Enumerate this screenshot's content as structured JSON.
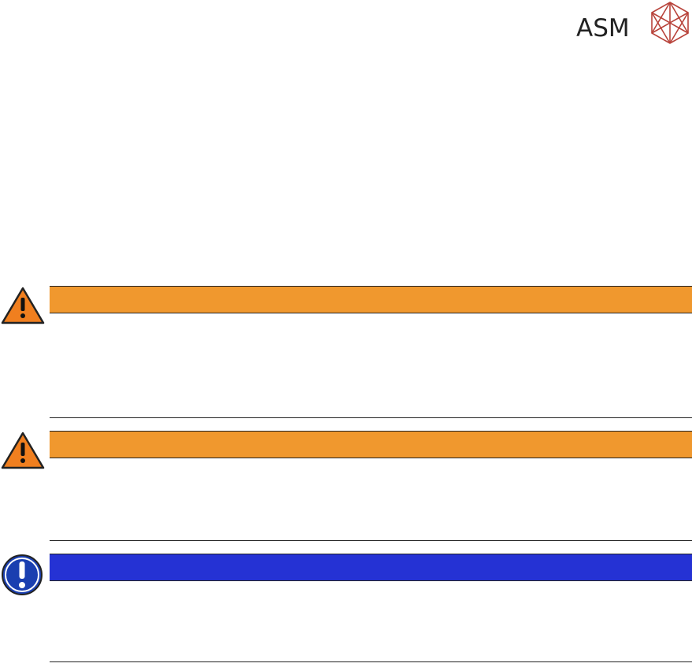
{
  "header": {
    "logo": "ASM"
  }
}
